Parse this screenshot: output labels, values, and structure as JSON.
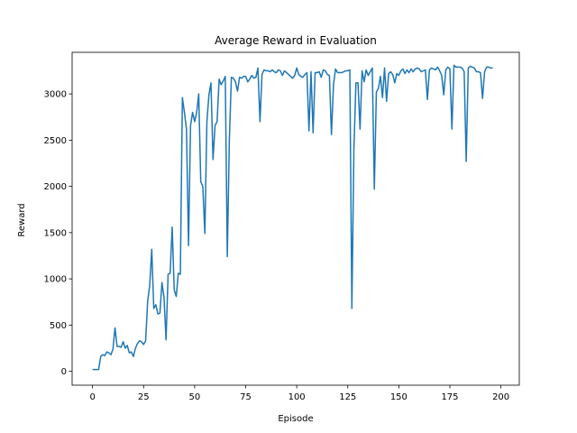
{
  "chart_data": {
    "type": "line",
    "title": "Average Reward in Evaluation",
    "xlabel": "Episode",
    "ylabel": "Reward",
    "xlim": [
      -10,
      209
    ],
    "ylim": [
      -150,
      3450
    ],
    "x_ticks": [
      0,
      25,
      50,
      75,
      100,
      125,
      150,
      175,
      200
    ],
    "y_ticks": [
      0,
      500,
      1000,
      1500,
      2000,
      2500,
      3000
    ],
    "grid": false,
    "legend": "none",
    "line_color": "#1f77b4",
    "series": [
      {
        "values": [
          20,
          20,
          20,
          20,
          160,
          180,
          170,
          210,
          200,
          180,
          240,
          470,
          270,
          270,
          260,
          320,
          250,
          280,
          200,
          210,
          160,
          250,
          300,
          330,
          320,
          290,
          330,
          760,
          930,
          1320,
          680,
          720,
          620,
          630,
          960,
          800,
          340,
          1050,
          1060,
          1560,
          880,
          810,
          1060,
          1050,
          2960,
          2800,
          2620,
          1360,
          2660,
          2800,
          2700,
          2800,
          3000,
          2050,
          2000,
          1490,
          2700,
          2990,
          3120,
          2290,
          2660,
          2700,
          3160,
          3100,
          3140,
          3190,
          1240,
          2500,
          3180,
          3170,
          3130,
          3030,
          3180,
          3170,
          3190,
          3190,
          3130,
          3160,
          3200,
          3170,
          3180,
          3280,
          2700,
          3210,
          3260,
          3250,
          3250,
          3240,
          3260,
          3240,
          3230,
          3260,
          3250,
          3200,
          3250,
          3230,
          3210,
          3190,
          3170,
          3200,
          3280,
          3210,
          3190,
          3180,
          3210,
          3230,
          2600,
          3240,
          2580,
          3230,
          3230,
          3240,
          3180,
          3260,
          3250,
          3210,
          3200,
          2560,
          3100,
          3270,
          3230,
          3230,
          3230,
          3240,
          3250,
          3250,
          3260,
          680,
          2400,
          3120,
          3120,
          2620,
          3250,
          3130,
          3260,
          3200,
          3240,
          3280,
          1970,
          3020,
          3060,
          3190,
          2960,
          3280,
          2920,
          3220,
          3240,
          3210,
          3120,
          3220,
          3200,
          3250,
          3270,
          3220,
          3260,
          3230,
          3270,
          3240,
          3270,
          3280,
          3270,
          3240,
          3250,
          3260,
          2940,
          3260,
          3280,
          3270,
          3260,
          3290,
          3250,
          3200,
          2990,
          3260,
          3290,
          3270,
          2620,
          3310,
          3290,
          3290,
          3290,
          3280,
          3240,
          2270,
          3280,
          3300,
          3290,
          3280,
          3240,
          3240,
          3230,
          2950,
          3240,
          3290,
          3290,
          3280,
          3280
        ]
      }
    ]
  }
}
